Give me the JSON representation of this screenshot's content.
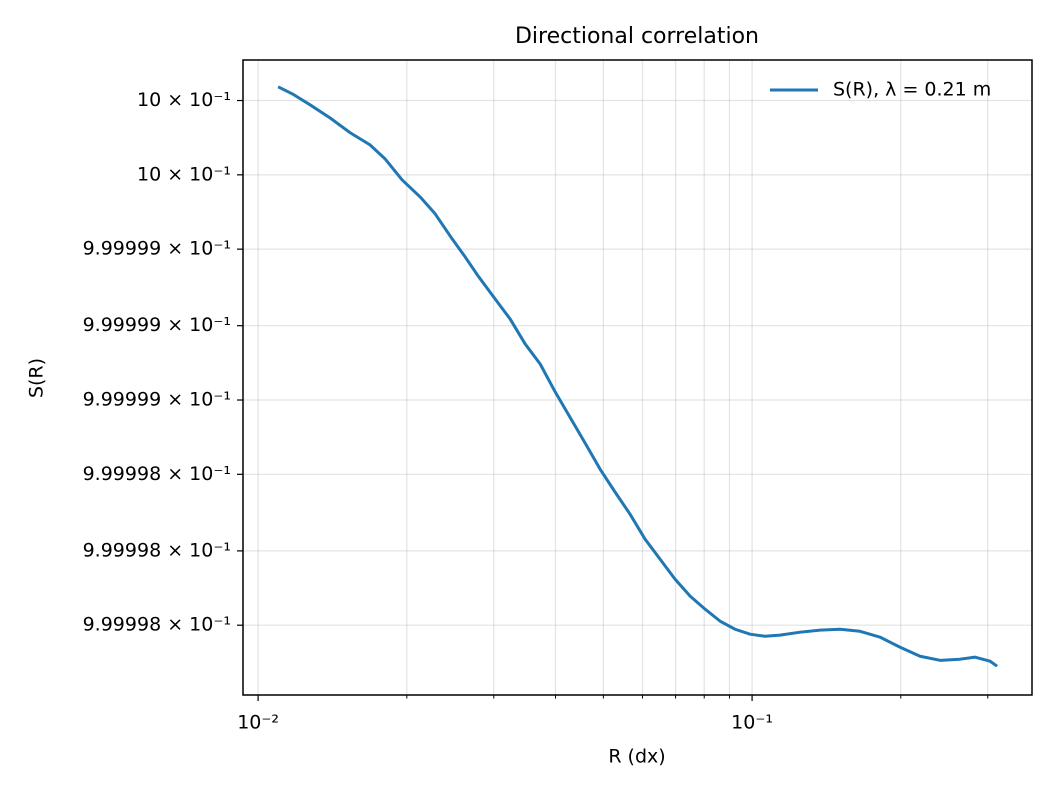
{
  "chart_data": {
    "type": "line",
    "title": "Directional correlation",
    "xlabel": "R (dx)",
    "ylabel": "S(R)",
    "xscale": "log",
    "yscale": "log",
    "grid": true,
    "legend": "upper right",
    "xlim": [
      0.00932,
      0.3687
    ],
    "ylim": [
      0.99999729,
      1.00000011
    ],
    "xticks": [
      {
        "value": 0.01,
        "label": "10⁻²"
      },
      {
        "value": 0.1,
        "label": "10⁻¹"
      }
    ],
    "xminor": [
      0.02,
      0.03,
      0.04,
      0.05,
      0.06,
      0.07,
      0.08,
      0.09,
      0.2,
      0.3
    ],
    "yticks": [
      {
        "value": 0.9999976,
        "label": "9.99998 × 10⁻¹"
      },
      {
        "value": 0.99999793,
        "label": "9.99998 × 10⁻¹"
      },
      {
        "value": 0.99999827,
        "label": "9.99998 × 10⁻¹"
      },
      {
        "value": 0.9999986,
        "label": "9.99999 × 10⁻¹"
      },
      {
        "value": 0.99999893,
        "label": "9.99999 × 10⁻¹"
      },
      {
        "value": 0.99999927,
        "label": "9.99999 × 10⁻¹"
      },
      {
        "value": 0.9999996,
        "label": "10 × 10⁻¹"
      },
      {
        "value": 0.99999993,
        "label": "10 × 10⁻¹"
      }
    ],
    "x": [
      0.01098,
      0.01172,
      0.01274,
      0.01398,
      0.01536,
      0.01685,
      0.01807,
      0.01956,
      0.02128,
      0.02282,
      0.0247,
      0.02624,
      0.02788,
      0.03018,
      0.03237,
      0.03472,
      0.03724,
      0.03994,
      0.04242,
      0.04591,
      0.04924,
      0.05281,
      0.05662,
      0.06073,
      0.06514,
      0.06985,
      0.07492,
      0.08035,
      0.08614,
      0.09239,
      0.09908,
      0.1062,
      0.1139,
      0.1251,
      0.1373,
      0.1507,
      0.1654,
      0.1816,
      0.1994,
      0.2188,
      0.2402,
      0.2637,
      0.2828,
      0.3033,
      0.3133
    ],
    "series": [
      {
        "name": "S(R), λ = 0.21 m",
        "color": "#1f77b4",
        "values": [
          0.999999991,
          0.99999996,
          0.999999911,
          0.999999853,
          0.999999787,
          0.999999733,
          0.999999671,
          0.999999578,
          0.999999502,
          0.999999427,
          0.999999316,
          0.999999236,
          0.999999151,
          0.999999049,
          0.99999896,
          0.999998849,
          0.99999876,
          0.999998636,
          0.999998538,
          0.999998409,
          0.999998293,
          0.999998191,
          0.999998093,
          0.999997982,
          0.999997893,
          0.999997804,
          0.999997729,
          0.999997671,
          0.999997618,
          0.999997582,
          0.99999756,
          0.999997551,
          0.999997556,
          0.999997569,
          0.999997578,
          0.999997582,
          0.999997573,
          0.999997547,
          0.999997502,
          0.999997462,
          0.999997444,
          0.999997449,
          0.999997458,
          0.99999744,
          0.999997418
        ]
      }
    ]
  }
}
